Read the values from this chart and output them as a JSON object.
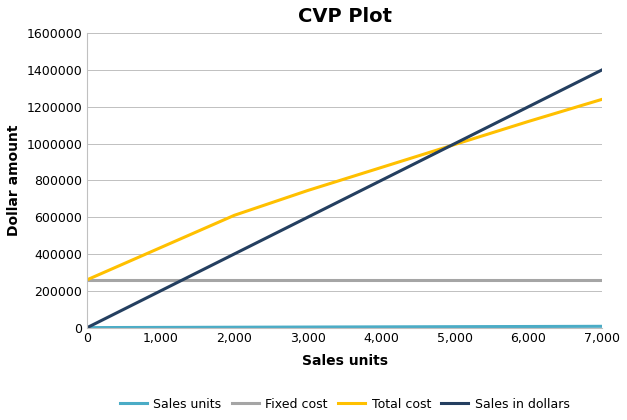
{
  "title": "CVP Plot",
  "xlabel": "Sales units",
  "ylabel": "Dollar amount",
  "x_values": [
    0,
    1000,
    2000,
    3000,
    4000,
    5000,
    6000,
    7000
  ],
  "sales_units_y": [
    0,
    1000,
    2000,
    3000,
    4000,
    5000,
    6000,
    7000
  ],
  "fixed_cost_y": [
    260000,
    260000,
    260000,
    260000,
    260000,
    260000,
    260000,
    260000
  ],
  "total_cost_y": [
    260000,
    435000,
    610000,
    745000,
    870000,
    995000,
    1120000,
    1240000
  ],
  "sales_dollars_y": [
    0,
    200000,
    400000,
    600000,
    800000,
    1000000,
    1200000,
    1400000
  ],
  "ylim": [
    0,
    1600000
  ],
  "xlim": [
    0,
    7000
  ],
  "yticks": [
    0,
    200000,
    400000,
    600000,
    800000,
    1000000,
    1200000,
    1400000,
    1600000
  ],
  "xticks": [
    0,
    1000,
    2000,
    3000,
    4000,
    5000,
    6000,
    7000
  ],
  "color_sales_units": "#4BACC6",
  "color_fixed_cost": "#A5A5A5",
  "color_total_cost": "#FFC000",
  "color_sales_dollars": "#243F60",
  "legend_labels": [
    "Sales units",
    "Fixed cost",
    "Total cost",
    "Sales in dollars"
  ],
  "background_color": "#FFFFFF",
  "grid_color": "#C0C0C0",
  "title_fontsize": 14,
  "axis_label_fontsize": 10,
  "tick_fontsize": 9,
  "legend_fontsize": 9,
  "linewidth": 2.2
}
